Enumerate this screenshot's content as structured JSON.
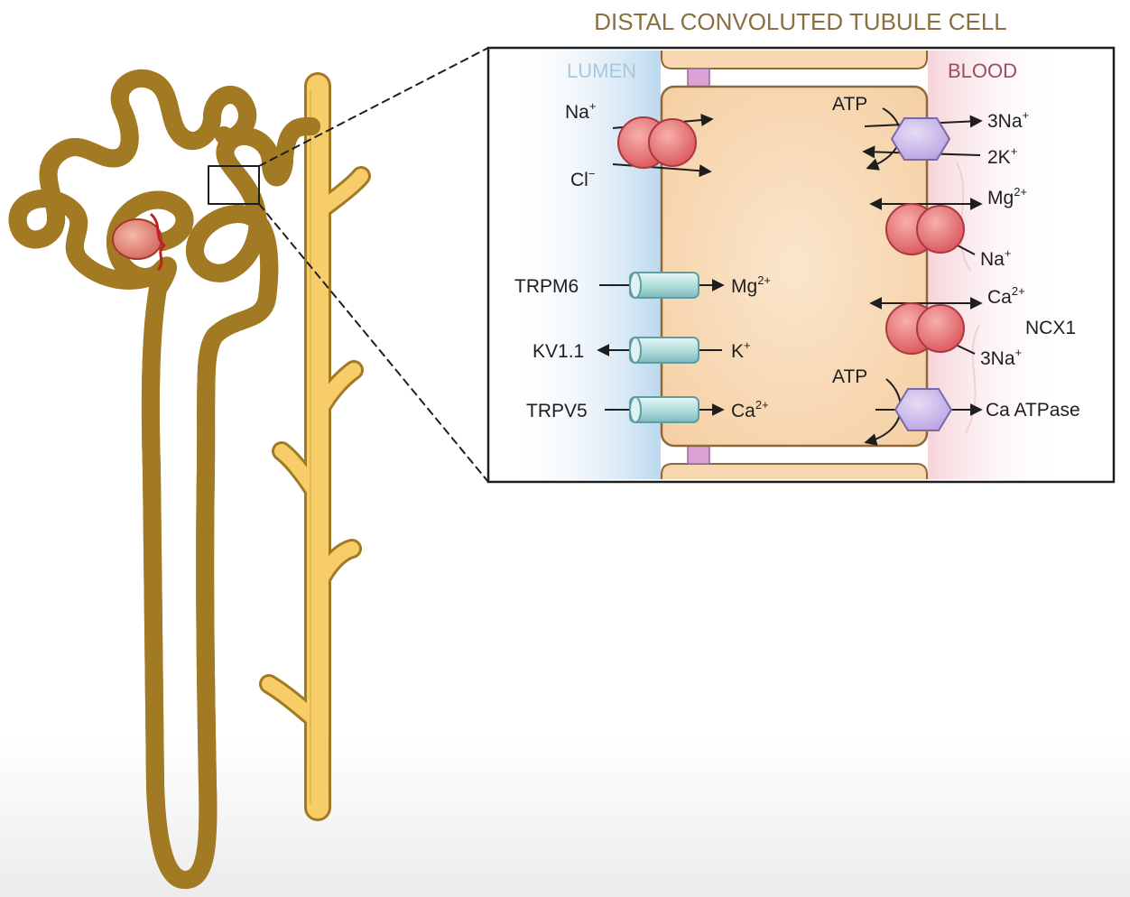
{
  "title": "DISTAL CONVOLUTED TUBULE CELL",
  "regions": {
    "lumen": "LUMEN",
    "blood": "BLOOD"
  },
  "colors": {
    "title": "#8a7040",
    "lumen": "#a9c8dc",
    "blood": "#9a4e62",
    "tubule_fill": "#f4cd6a",
    "tubule_edge": "#9a7320",
    "cell_fill": "#f8d7b0",
    "cell_edge": "#8a6a3a",
    "cotransporter": "#e07072",
    "channel": "#bfe3e3",
    "pump": "#c8b4e8",
    "junction": "#d8a0d0"
  },
  "transporters": {
    "nacl": {
      "in1": "Na",
      "in1_sup": "+",
      "in2": "Cl",
      "in2_sup": "−"
    },
    "nak_pump": {
      "atp": "ATP",
      "out1": "3Na",
      "out1_sup": "+",
      "out2": "2K",
      "out2_sup": "+",
      "icon": "hexagon-pump-icon"
    },
    "mg_exchanger": {
      "out": "Mg",
      "out_sup": "2+",
      "in": "Na",
      "in_sup": "+"
    },
    "ncx1": {
      "out": "Ca",
      "out_sup": "2+",
      "in": "3Na",
      "in_sup": "+",
      "name": "NCX1"
    },
    "ca_atpase": {
      "atp": "ATP",
      "name": "Ca ATPase",
      "icon": "hexagon-pump-icon"
    }
  },
  "channels": {
    "trpm6": {
      "name": "TRPM6",
      "ion": "Mg",
      "ion_sup": "2+"
    },
    "kv11": {
      "name": "KV1.1",
      "ion": "K",
      "ion_sup": "+"
    },
    "trpv5": {
      "name": "TRPV5",
      "ion": "Ca",
      "ion_sup": "2+"
    }
  }
}
